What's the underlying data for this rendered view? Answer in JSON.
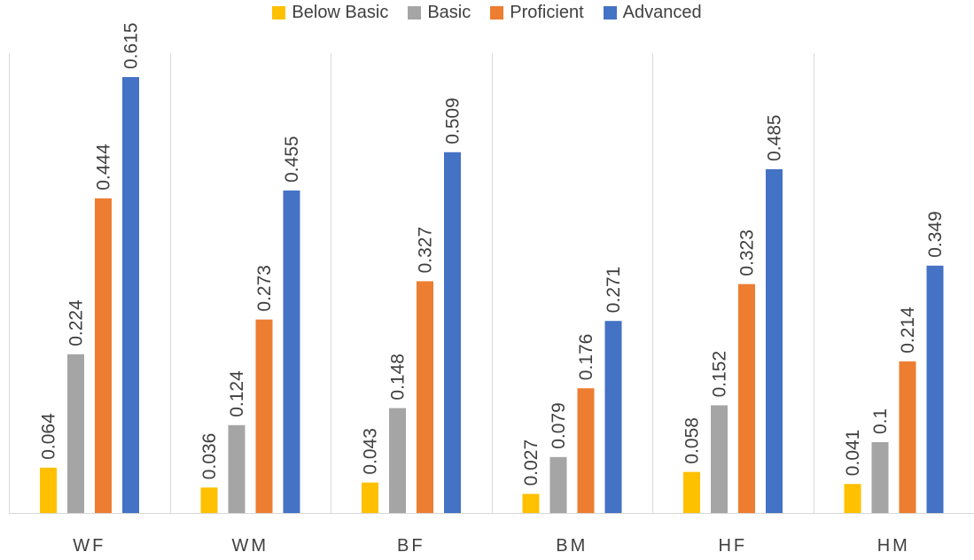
{
  "chart_data": {
    "type": "bar",
    "categories": [
      "WF",
      "WM",
      "BF",
      "BM",
      "HF",
      "HM"
    ],
    "series": [
      {
        "name": "Below Basic",
        "color": "#FFC000",
        "values": [
          0.064,
          0.036,
          0.043,
          0.027,
          0.058,
          0.041
        ]
      },
      {
        "name": "Basic",
        "color": "#A5A5A5",
        "values": [
          0.224,
          0.124,
          0.148,
          0.079,
          0.152,
          0.1
        ]
      },
      {
        "name": "Proficient",
        "color": "#ED7D31",
        "values": [
          0.444,
          0.273,
          0.327,
          0.176,
          0.323,
          0.214
        ]
      },
      {
        "name": "Advanced",
        "color": "#4472C4",
        "values": [
          0.615,
          0.455,
          0.509,
          0.271,
          0.485,
          0.349
        ]
      }
    ],
    "ylim": [
      0,
      0.7
    ],
    "legend_position": "top",
    "grid": "vertical category separators"
  }
}
